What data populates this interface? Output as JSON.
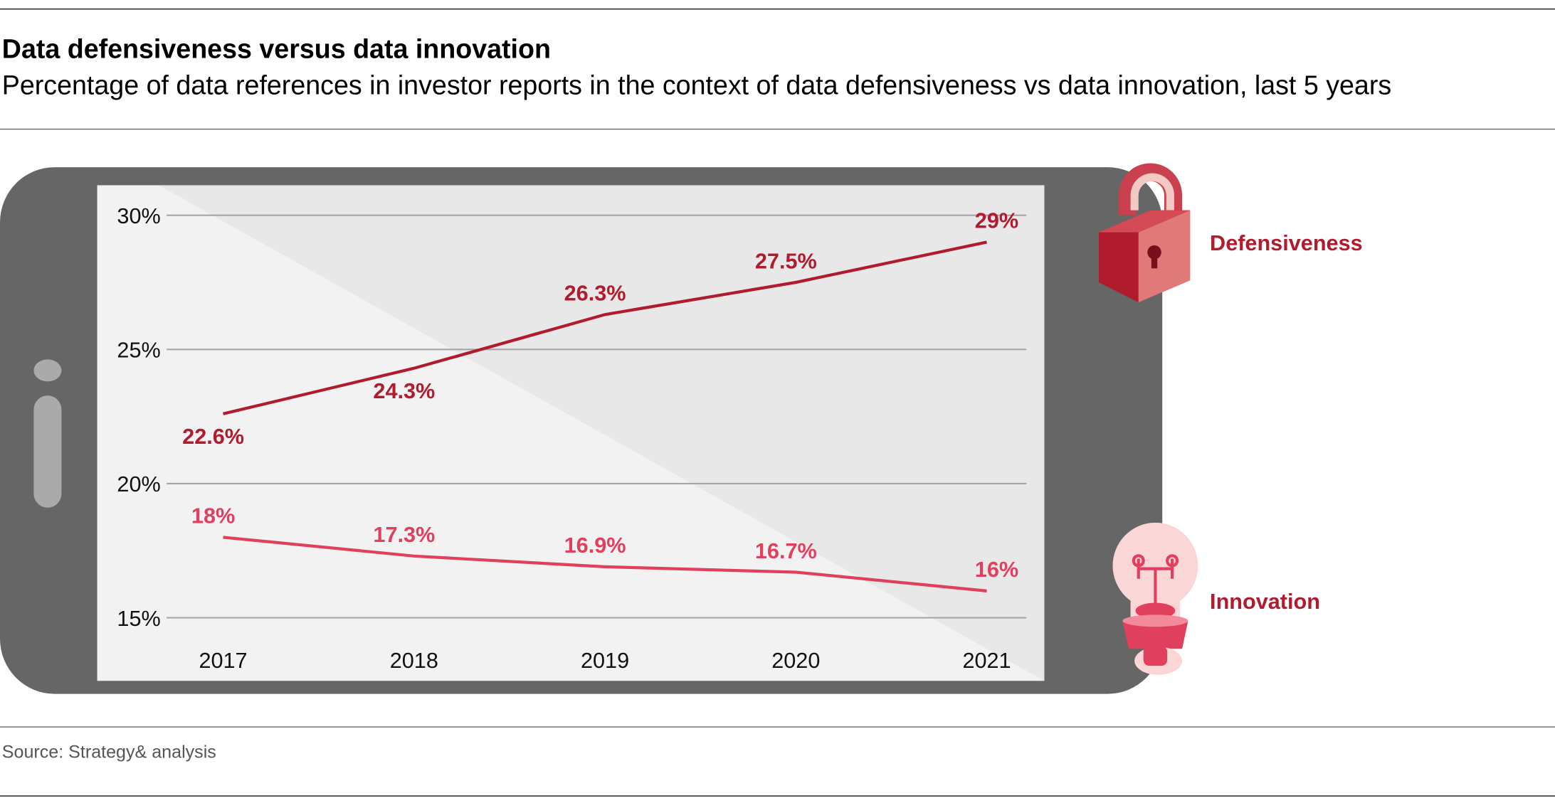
{
  "chart_data": {
    "type": "line",
    "title": "Data defensiveness versus data innovation",
    "subtitle": "Percentage of data references in investor reports in the context of data defensiveness vs data innovation, last 5 years",
    "source": "Source: Strategy& analysis",
    "categories": [
      "2017",
      "2018",
      "2019",
      "2020",
      "2021"
    ],
    "series": [
      {
        "name": "Defensiveness",
        "color": "#b01c2e",
        "values": [
          22.6,
          24.3,
          26.3,
          27.5,
          29
        ],
        "value_labels": [
          "22.6%",
          "24.3%",
          "26.3%",
          "27.5%",
          "29%"
        ]
      },
      {
        "name": "Innovation",
        "color": "#e0405e",
        "values": [
          18,
          17.3,
          16.9,
          16.7,
          16
        ],
        "value_labels": [
          "18%",
          "17.3%",
          "16.9%",
          "16.7%",
          "16%"
        ]
      }
    ],
    "ylim": [
      15,
      30
    ],
    "yticks": [
      {
        "value": 15,
        "label": "15%"
      },
      {
        "value": 20,
        "label": "20%"
      },
      {
        "value": 25,
        "label": "25%"
      },
      {
        "value": 30,
        "label": "30%"
      }
    ],
    "grid": true
  }
}
